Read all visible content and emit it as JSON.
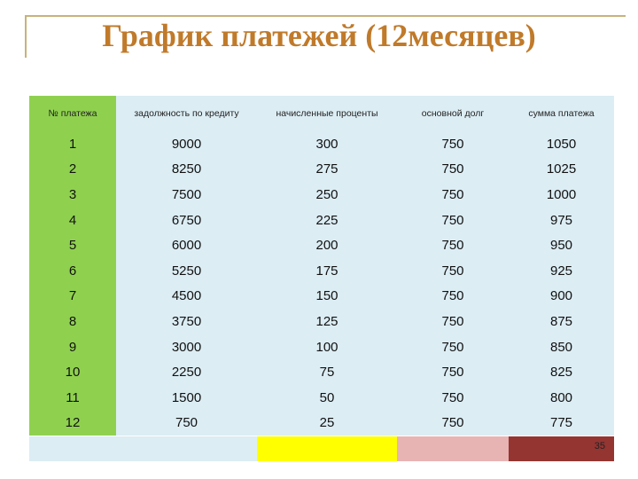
{
  "title": "График платежей (12месяцев)",
  "table": {
    "headers": [
      "№ платежа",
      "задолжность по кредиту",
      "начисленные проценты",
      "основной долг",
      "сумма платежа"
    ],
    "rows": [
      [
        "1",
        "9000",
        "300",
        "750",
        "1050"
      ],
      [
        "2",
        "8250",
        "275",
        "750",
        "1025"
      ],
      [
        "3",
        "7500",
        "250",
        "750",
        "1000"
      ],
      [
        "4",
        "6750",
        "225",
        "750",
        "975"
      ],
      [
        "5",
        "6000",
        "200",
        "750",
        "950"
      ],
      [
        "6",
        "5250",
        "175",
        "750",
        "925"
      ],
      [
        "7",
        "4500",
        "150",
        "750",
        "900"
      ],
      [
        "8",
        "3750",
        "125",
        "750",
        "875"
      ],
      [
        "9",
        "3000",
        "100",
        "750",
        "850"
      ],
      [
        "10",
        "2250",
        "75",
        "750",
        "825"
      ],
      [
        "11",
        "1500",
        "50",
        "750",
        "800"
      ],
      [
        "12",
        "750",
        "25",
        "750",
        "775"
      ]
    ]
  },
  "page_number": "35",
  "colors": {
    "title": "#c07a2a",
    "number_column": "#8fd14f",
    "cell_background": "#dcedf4",
    "footer_yellow": "#ffff00",
    "footer_pink": "#e8b3b3",
    "footer_maroon": "#943532"
  }
}
